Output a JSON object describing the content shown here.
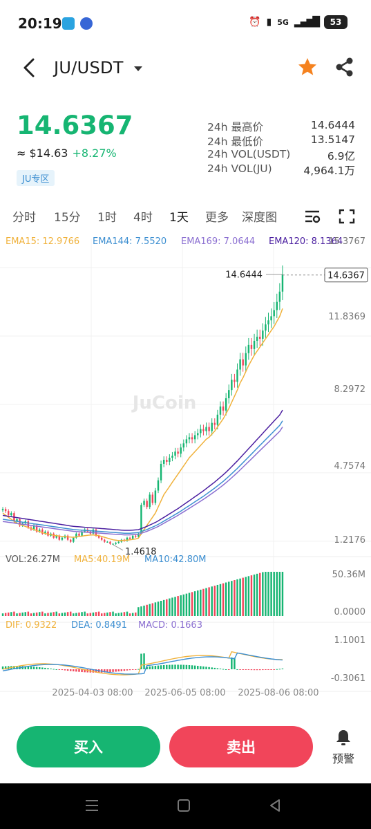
{
  "status_bar": {
    "time": "20:19",
    "network": "5G",
    "battery": "53"
  },
  "header": {
    "pair": "JU/USDT"
  },
  "ticker": {
    "price": "14.6367",
    "fiat": "≈ $14.63",
    "change": "+8.27%",
    "zone_tag": "JU专区",
    "stats": [
      {
        "label": "24h 最高价",
        "value": "14.6444"
      },
      {
        "label": "24h 最低价",
        "value": "13.5147"
      },
      {
        "label": "24h VOL(USDT)",
        "value": "6.9亿"
      },
      {
        "label": "24h VOL(JU)",
        "value": "4,964.1万"
      }
    ]
  },
  "timeframes": [
    "分时",
    "15分",
    "1时",
    "4时",
    "1天",
    "更多",
    "深度图"
  ],
  "active_timeframe": "1天",
  "chart_data": {
    "type": "line",
    "watermark": "JuCoin",
    "ema_legend": [
      {
        "label": "EMA15: 12.9766",
        "color": "#f0b23c"
      },
      {
        "label": "EMA144: 7.5520",
        "color": "#3d8fd1"
      },
      {
        "label": "EMA169: 7.0644",
        "color": "#8b6fd1"
      },
      {
        "label": "EMA120: 8.1364",
        "color": "#4b1fa0"
      }
    ],
    "price_axis": [
      "15.3767",
      "11.8369",
      "8.2972",
      "4.7574",
      "1.2176"
    ],
    "ylim": [
      1.2176,
      15.3767
    ],
    "high_marker": "14.6444",
    "current_price": "14.6367",
    "low_marker": "1.4618",
    "close_prices": [
      3.2,
      3.1,
      2.9,
      3.0,
      2.6,
      2.7,
      2.4,
      2.5,
      2.6,
      2.3,
      2.2,
      2.4,
      2.1,
      2.2,
      2.0,
      2.1,
      1.9,
      2.0,
      1.8,
      1.9,
      1.7,
      1.8,
      1.9,
      1.7,
      1.6,
      1.8,
      2.0,
      1.9,
      2.1,
      2.2,
      2.1,
      2.0,
      2.2,
      1.9,
      1.8,
      1.7,
      1.6,
      1.6,
      1.5,
      1.5,
      1.55,
      1.6,
      1.7,
      1.65,
      1.8,
      1.75,
      1.9,
      1.85,
      2.0,
      3.4,
      3.6,
      3.3,
      3.9,
      3.5,
      4.1,
      4.6,
      5.4,
      5.6,
      5.5,
      5.7,
      5.8,
      6.0,
      5.9,
      6.2,
      6.4,
      6.6,
      6.7,
      6.6,
      6.8,
      6.9,
      7.1,
      7.0,
      7.2,
      7.0,
      7.4,
      7.3,
      7.8,
      8.2,
      8.0,
      8.6,
      9.0,
      9.5,
      9.4,
      10.0,
      10.5,
      10.2,
      10.8,
      11.2,
      11.0,
      11.4,
      11.6,
      11.5,
      11.9,
      12.2,
      12.4,
      12.6,
      12.9,
      13.3,
      13.8,
      14.6367
    ],
    "ema15": [
      3.0,
      2.9,
      2.8,
      2.7,
      2.6,
      2.5,
      2.45,
      2.4,
      2.35,
      2.3,
      2.25,
      2.2,
      2.15,
      2.1,
      2.05,
      2.0,
      1.98,
      1.95,
      1.92,
      1.9,
      1.88,
      1.86,
      1.85,
      1.84,
      1.83,
      1.82,
      1.84,
      1.86,
      1.88,
      1.9,
      1.92,
      1.93,
      1.94,
      1.92,
      1.9,
      1.86,
      1.82,
      1.78,
      1.74,
      1.7,
      1.68,
      1.66,
      1.66,
      1.67,
      1.68,
      1.7,
      1.72,
      1.74,
      1.78,
      2.0,
      2.2,
      2.4,
      2.6,
      2.8,
      3.0,
      3.3,
      3.6,
      3.9,
      4.1,
      4.3,
      4.5,
      4.7,
      4.9,
      5.1,
      5.3,
      5.5,
      5.7,
      5.85,
      6.0,
      6.15,
      6.3,
      6.45,
      6.6,
      6.7,
      6.85,
      7.0,
      7.2,
      7.4,
      7.6,
      7.85,
      8.1,
      8.4,
      8.7,
      9.0,
      9.35,
      9.6,
      9.9,
      10.2,
      10.45,
      10.7,
      10.9,
      11.1,
      11.3,
      11.5,
      11.7,
      11.9,
      12.1,
      12.35,
      12.6,
      12.9766
    ],
    "ema_long": [
      2.7,
      2.68,
      2.66,
      2.64,
      2.62,
      2.6,
      2.58,
      2.56,
      2.54,
      2.52,
      2.5,
      2.48,
      2.46,
      2.44,
      2.42,
      2.4,
      2.38,
      2.36,
      2.34,
      2.32,
      2.3,
      2.28,
      2.26,
      2.24,
      2.22,
      2.2,
      2.19,
      2.18,
      2.17,
      2.16,
      2.15,
      2.14,
      2.13,
      2.12,
      2.11,
      2.1,
      2.09,
      2.08,
      2.07,
      2.06,
      2.05,
      2.04,
      2.03,
      2.02,
      2.02,
      2.02,
      2.03,
      2.04,
      2.05,
      2.1,
      2.15,
      2.2,
      2.26,
      2.32,
      2.38,
      2.45,
      2.53,
      2.61,
      2.69,
      2.77,
      2.85,
      2.93,
      3.01,
      3.1,
      3.19,
      3.28,
      3.37,
      3.46,
      3.55,
      3.64,
      3.73,
      3.82,
      3.92,
      4.02,
      4.12,
      4.22,
      4.33,
      4.44,
      4.55,
      4.67,
      4.79,
      4.92,
      5.05,
      5.18,
      5.32,
      5.46,
      5.6,
      5.74,
      5.88,
      6.02,
      6.16,
      6.3,
      6.44,
      6.58,
      6.72,
      6.86,
      7.0,
      7.14,
      7.28,
      7.5
    ],
    "volume_legend": [
      {
        "label": "VOL:26.27M",
        "color": "#555555"
      },
      {
        "label": "MA5:40.19M",
        "color": "#f0b23c"
      },
      {
        "label": "MA10:42.80M",
        "color": "#3d8fd1"
      }
    ],
    "volume_axis": [
      "50.36M",
      "0.0000"
    ],
    "macd_legend": [
      {
        "label": "DIF: 0.9322",
        "color": "#f0b23c"
      },
      {
        "label": "DEA: 0.8491",
        "color": "#3d8fd1"
      },
      {
        "label": "MACD: 0.1663",
        "color": "#8b6fd1"
      }
    ],
    "macd_axis": [
      "1.1001",
      "-0.3061"
    ],
    "x_labels": [
      "2025-04-03 08:00",
      "2025-06-05 08:00",
      "2025-08-06 08:00"
    ]
  },
  "actions": {
    "buy": "买入",
    "sell": "卖出",
    "alert": "预警"
  }
}
